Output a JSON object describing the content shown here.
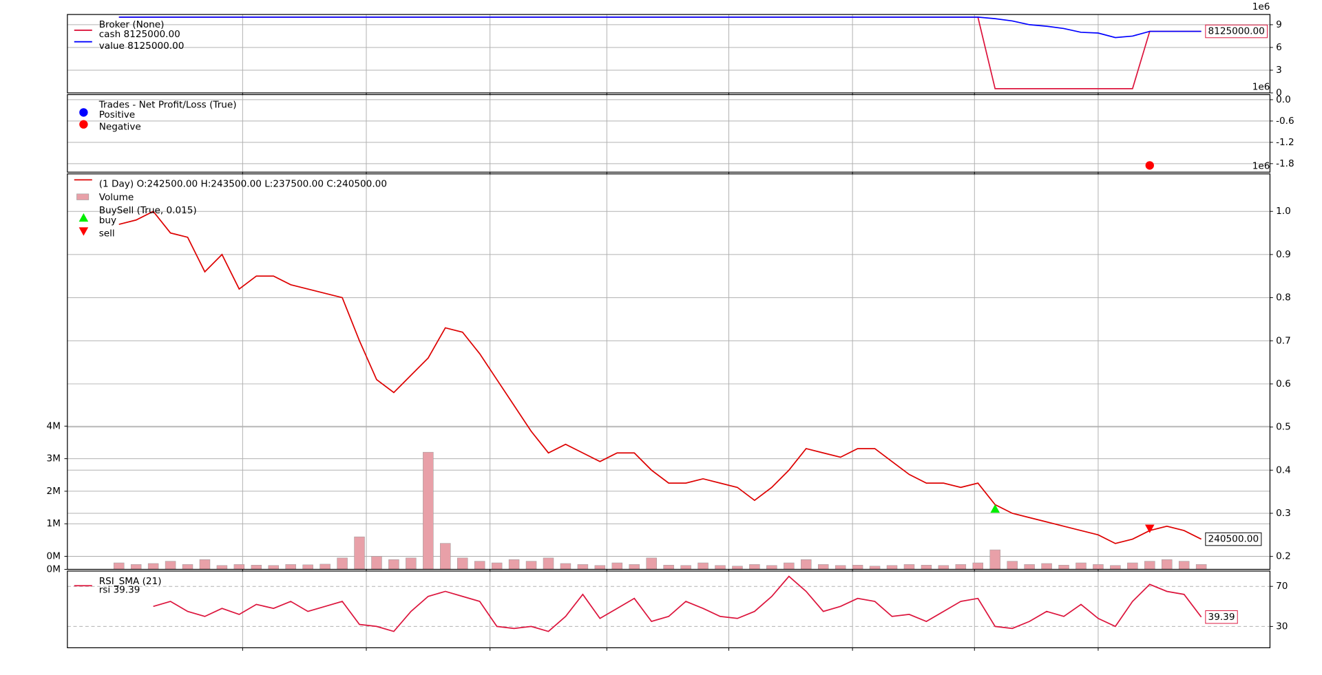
{
  "chart_data": [
    {
      "type": "line",
      "legend_title": "Broker (None)",
      "y_offset_label": "1e6",
      "last_value_label": "8125000.00",
      "xlim": [
        -3,
        67
      ],
      "xticks": [
        7.2,
        14.4,
        21.6,
        28.4,
        35.5,
        42.7,
        49.8,
        57.0
      ],
      "ylim": [
        0,
        10.35
      ],
      "yticks": [
        0,
        3,
        6,
        9
      ],
      "grid": true,
      "series": [
        {
          "name": "cash 8125000.00",
          "color": "#dc143c",
          "values": [
            10,
            10,
            10,
            10,
            10,
            10,
            10,
            10,
            10,
            10,
            10,
            10,
            10,
            10,
            10,
            10,
            10,
            10,
            10,
            10,
            10,
            10,
            10,
            10,
            10,
            10,
            10,
            10,
            10,
            10,
            10,
            10,
            10,
            10,
            10,
            10,
            10,
            10,
            10,
            10,
            10,
            10,
            10,
            10,
            10,
            10,
            10,
            10,
            10,
            10,
            10,
            0.56,
            0.56,
            0.56,
            0.56,
            0.56,
            0.56,
            0.56,
            0.56,
            0.56,
            8.125,
            8.125,
            8.125,
            8.125
          ]
        },
        {
          "name": "value 8125000.00",
          "color": "#0000ff",
          "values": [
            10,
            10,
            10,
            10,
            10,
            10,
            10,
            10,
            10,
            10,
            10,
            10,
            10,
            10,
            10,
            10,
            10,
            10,
            10,
            10,
            10,
            10,
            10,
            10,
            10,
            10,
            10,
            10,
            10,
            10,
            10,
            10,
            10,
            10,
            10,
            10,
            10,
            10,
            10,
            10,
            10,
            10,
            10,
            10,
            10,
            10,
            10,
            10,
            10,
            10,
            10,
            9.8,
            9.5,
            9.0,
            8.8,
            8.5,
            8.0,
            7.9,
            7.3,
            7.5,
            8.125,
            8.125,
            8.125,
            8.125
          ]
        }
      ]
    },
    {
      "type": "scatter",
      "legend_title": "Trades - Net Profit/Loss (True)",
      "y_offset_label": "1e6",
      "xlim": [
        -3,
        67
      ],
      "xticks": [
        7.2,
        14.4,
        21.6,
        28.4,
        35.5,
        42.7,
        49.8,
        57.0
      ],
      "ylim": [
        -2.04,
        0.144
      ],
      "yticks": [
        {
          "value": 0,
          "label": "0.0"
        },
        -0.6,
        -1.2,
        -1.8
      ],
      "grid": true,
      "series": [
        {
          "name": "Positive",
          "color": "#0000ff",
          "marker": "o",
          "x": [],
          "values": []
        },
        {
          "name": "Negative",
          "color": "#ff0000",
          "marker": "o",
          "x": [
            60
          ],
          "values": [
            -1.85
          ]
        }
      ]
    },
    {
      "type": "line",
      "y_offset_label": "1e6",
      "last_value_label": "240500.00",
      "xlim": [
        -3,
        67
      ],
      "xticks": [
        7.2,
        14.4,
        21.6,
        28.4,
        35.5,
        42.7,
        49.8,
        57.0
      ],
      "ylim": [
        0.17,
        1.087
      ],
      "yticks": [
        0.2,
        0.3,
        0.4,
        0.5,
        0.6,
        0.7,
        0.8,
        0.9,
        {
          "value": 1.0,
          "label": "1.0"
        }
      ],
      "grid": true,
      "y2lim": [
        0,
        12150000
      ],
      "y2ticks": [
        {
          "value": 0,
          "label": "0M"
        },
        {
          "value": 400000,
          "label": "0M"
        },
        {
          "value": 1400000,
          "label": "1M"
        },
        {
          "value": 2400000,
          "label": "2M"
        },
        {
          "value": 3400000,
          "label": "3M"
        },
        {
          "value": 4400000,
          "label": "4M"
        }
      ],
      "series": [
        {
          "name": "(1 Day) O:242500.00 H:243500.00 L:237500.00 C:240500.00",
          "color": "#dd0000",
          "values": [
            0.97,
            0.98,
            1.0,
            0.95,
            0.94,
            0.86,
            0.9,
            0.82,
            0.85,
            0.85,
            0.83,
            0.82,
            0.81,
            0.8,
            0.7,
            0.61,
            0.58,
            0.62,
            0.66,
            0.73,
            0.72,
            0.67,
            0.61,
            0.55,
            0.49,
            0.44,
            0.46,
            0.44,
            0.42,
            0.44,
            0.44,
            0.4,
            0.37,
            0.37,
            0.38,
            0.37,
            0.36,
            0.33,
            0.36,
            0.4,
            0.45,
            0.44,
            0.43,
            0.45,
            0.45,
            0.42,
            0.39,
            0.37,
            0.37,
            0.36,
            0.37,
            0.32,
            0.3,
            0.29,
            0.28,
            0.27,
            0.26,
            0.25,
            0.23,
            0.24,
            0.26,
            0.27,
            0.26,
            0.24
          ]
        },
        {
          "name": "Volume",
          "color": "#e8a0a8",
          "type": "bar",
          "axis": "y2",
          "values": [
            200000,
            150000,
            180000,
            250000,
            150000,
            300000,
            120000,
            150000,
            130000,
            120000,
            150000,
            140000,
            160000,
            350000,
            1000000,
            400000,
            300000,
            350000,
            3600000,
            800000,
            350000,
            250000,
            200000,
            300000,
            250000,
            350000,
            180000,
            150000,
            120000,
            200000,
            150000,
            350000,
            130000,
            120000,
            200000,
            120000,
            100000,
            150000,
            120000,
            200000,
            300000,
            150000,
            120000,
            130000,
            100000,
            120000,
            150000,
            130000,
            120000,
            150000,
            200000,
            600000,
            250000,
            150000,
            180000,
            130000,
            200000,
            150000,
            120000,
            200000,
            250000,
            300000,
            250000,
            150000
          ]
        },
        {
          "name": "buy",
          "group": "BuySell (True, 0.015)",
          "color": "#00ee00",
          "type": "scatter",
          "marker": "^",
          "x": [
            51
          ],
          "values": [
            0.31
          ]
        },
        {
          "name": "sell",
          "group": "BuySell (True, 0.015)",
          "color": "#ff0000",
          "type": "scatter",
          "marker": "v",
          "x": [
            60
          ],
          "values": [
            0.265
          ]
        }
      ]
    },
    {
      "type": "line",
      "legend_title": "RSI_SMA (21)",
      "last_value_label": "39.39",
      "xlim": [
        -3,
        67
      ],
      "xticks": [
        7.2,
        14.4,
        21.6,
        28.4,
        35.5,
        42.7,
        49.8,
        57.0
      ],
      "ylim": [
        8.7,
        85.3
      ],
      "yticks": [
        30,
        70
      ],
      "grid": true,
      "grid_linestyle": "dashed",
      "series": [
        {
          "name": "rsi 39.39",
          "color": "#dc143c",
          "values": [
            null,
            null,
            50,
            55,
            45,
            40,
            48,
            42,
            52,
            48,
            55,
            45,
            50,
            55,
            32,
            30,
            25,
            45,
            60,
            65,
            60,
            55,
            30,
            28,
            30,
            25,
            40,
            62,
            38,
            48,
            58,
            35,
            40,
            55,
            48,
            40,
            38,
            45,
            60,
            80,
            65,
            45,
            50,
            58,
            55,
            40,
            42,
            35,
            45,
            55,
            58,
            30,
            28,
            35,
            45,
            40,
            52,
            38,
            30,
            55,
            72,
            65,
            62,
            39.39
          ]
        }
      ]
    }
  ]
}
